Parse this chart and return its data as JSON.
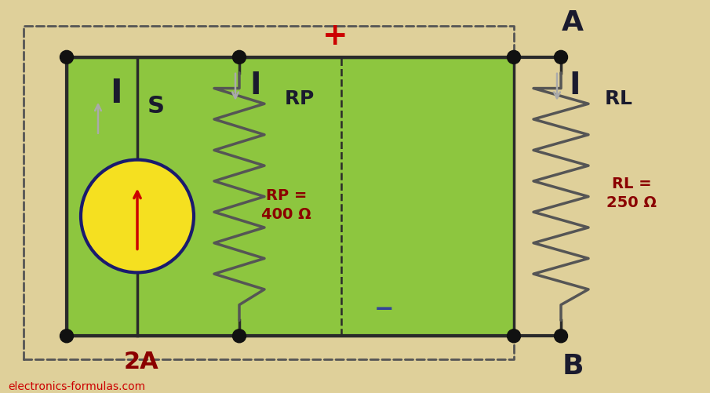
{
  "bg_color": "#dfd09a",
  "green_color": "#8dc63f",
  "wire_color": "#2a2a2a",
  "dot_color": "#111111",
  "dashed_color": "#555555",
  "cs_yellow": "#f5e020",
  "cs_border": "#1a1a6e",
  "tc": "#8b0000",
  "label_2A": "2A",
  "label_RP": "RP =\n400 Ω",
  "label_RL": "RL =\n250 Ω",
  "label_plus": "+",
  "label_minus": "−",
  "label_A": "A",
  "label_B": "B",
  "watermark": "electronics-formulas.com",
  "fig_width": 9.05,
  "fig_height": 5.02,
  "dpi": 100,
  "arrow_color": "#aaaaaa",
  "text_dark": "#1a1a2e"
}
